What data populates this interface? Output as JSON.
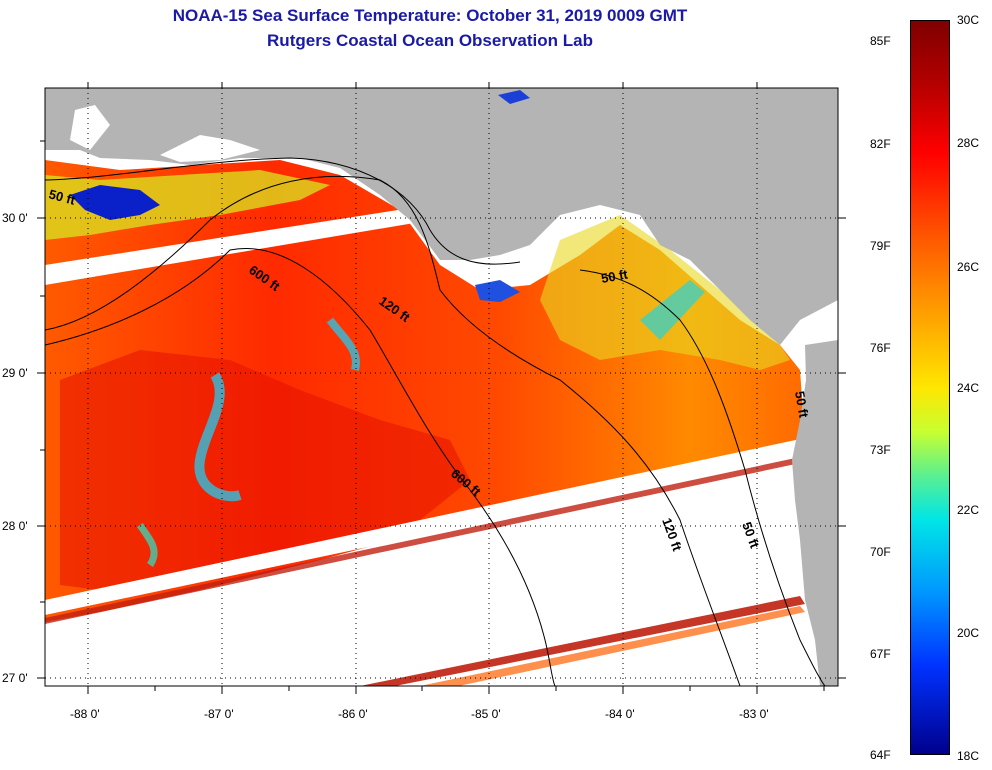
{
  "title": "NOAA-15 Sea Surface Temperature:  October 31, 2019 0009 GMT",
  "subtitle": "Rutgers Coastal Ocean Observation Lab",
  "axes": {
    "lat_labels": [
      "30 0'",
      "29 0'",
      "28 0'",
      "27 0'"
    ],
    "lon_labels": [
      "-88 0'",
      "-87 0'",
      "-86 0'",
      "-85 0'",
      "-84 0'",
      "-83 0'"
    ]
  },
  "contour_labels": [
    "50 ft",
    "600 ft",
    "120 ft",
    "50 ft",
    "600 ft",
    "120 ft",
    "50 ft",
    "50 ft"
  ],
  "colorbar": {
    "fahrenheit": [
      "85F",
      "82F",
      "79F",
      "76F",
      "73F",
      "70F",
      "67F",
      "64F"
    ],
    "celsius": [
      "30C",
      "28C",
      "26C",
      "24C",
      "22C",
      "20C",
      "18C"
    ]
  },
  "colors": {
    "title": "#1a1aa6",
    "land": "#b4b4b4",
    "warm": "#ff4000",
    "hot": "#e00000",
    "cool": "#30c8c8",
    "cold": "#0020c0"
  }
}
